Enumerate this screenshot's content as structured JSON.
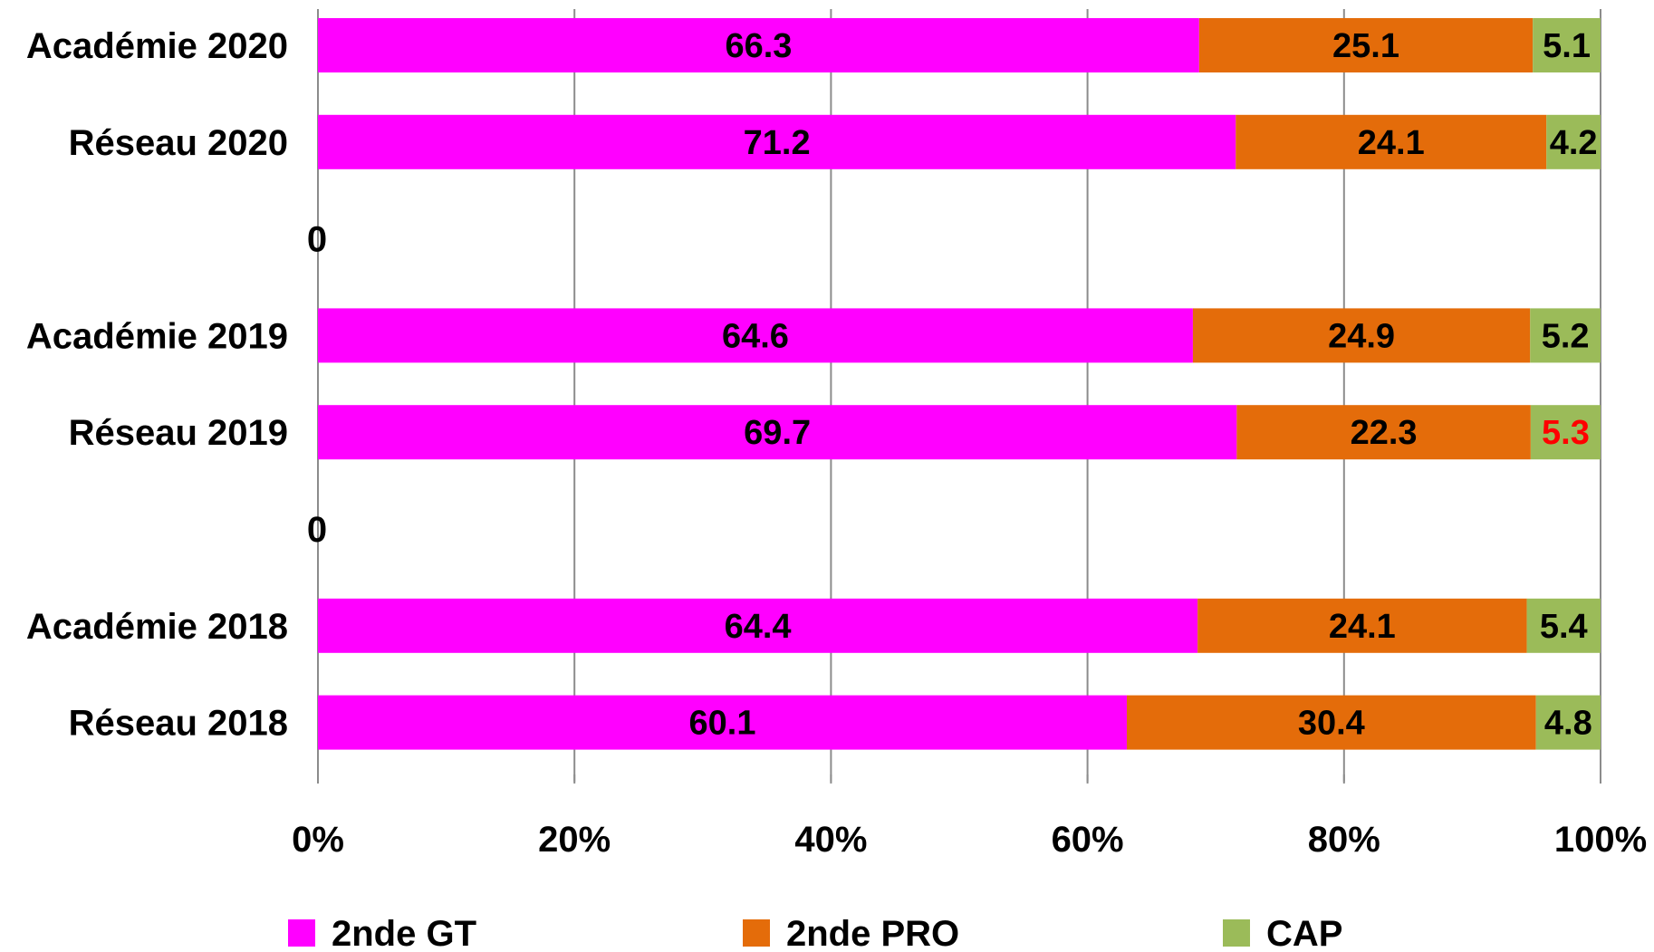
{
  "chart_data": {
    "type": "bar",
    "orientation": "horizontal",
    "stacked": "percent",
    "categories": [
      "Académie 2020",
      "Réseau 2020",
      "0",
      "Académie 2019",
      "Réseau 2019",
      "0",
      "Académie 2018",
      "Réseau 2018"
    ],
    "series": [
      {
        "name": "2nde GT",
        "color": "#ff00ff",
        "values": [
          66.3,
          71.2,
          null,
          64.6,
          69.7,
          null,
          64.4,
          60.1
        ]
      },
      {
        "name": "2nde PRO",
        "color": "#e46c0a",
        "values": [
          25.1,
          24.1,
          null,
          24.9,
          22.3,
          null,
          24.1,
          30.4
        ]
      },
      {
        "name": "CAP",
        "color": "#9bbb59",
        "values": [
          5.1,
          4.2,
          null,
          5.2,
          5.3,
          null,
          5.4,
          4.8
        ]
      }
    ],
    "x_ticks": [
      "0%",
      "20%",
      "40%",
      "60%",
      "80%",
      "100%"
    ],
    "xlim": [
      0,
      100
    ],
    "grid": "vertical",
    "legend": "bottom",
    "highlighted_value_color": "#ff0000",
    "highlighted_values": [
      {
        "category_index": 4,
        "series_index": 2
      }
    ]
  }
}
